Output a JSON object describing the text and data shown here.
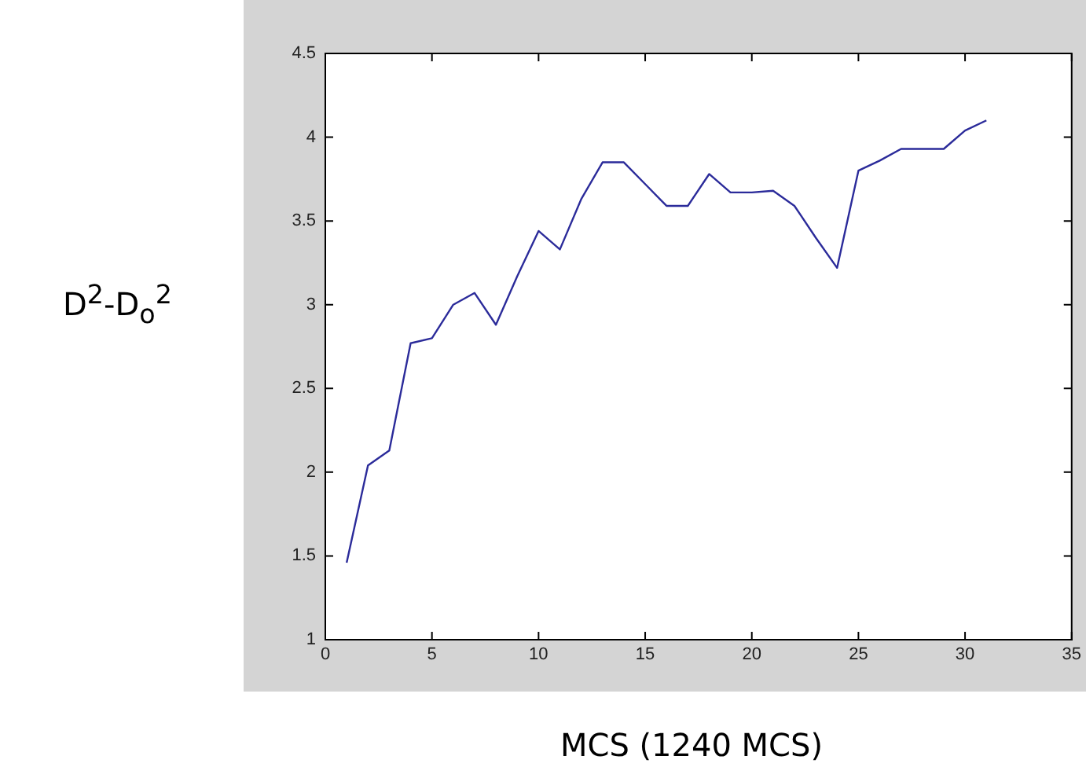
{
  "chart_data": {
    "type": "line",
    "xlabel": "MCS (1240 MCS)",
    "ylabel": "D$^{2}$-D$_{o}$$^{2}$",
    "x": [
      1,
      2,
      3,
      4,
      5,
      6,
      7,
      8,
      9,
      10,
      11,
      12,
      13,
      14,
      15,
      16,
      17,
      18,
      19,
      20,
      21,
      22,
      23,
      24,
      25,
      26,
      27,
      28,
      29,
      30,
      31
    ],
    "series": [
      {
        "color": "#2b2b9a",
        "values": [
          1.46,
          2.04,
          2.13,
          2.77,
          2.8,
          3.0,
          3.07,
          2.88,
          3.17,
          3.44,
          3.33,
          3.63,
          3.85,
          3.85,
          3.72,
          3.59,
          3.59,
          3.78,
          3.67,
          3.67,
          3.68,
          3.59,
          3.4,
          3.22,
          3.8,
          3.86,
          3.93,
          3.93,
          3.93,
          4.04,
          4.1
        ]
      }
    ],
    "xlim": [
      0,
      35
    ],
    "xticks": [
      0,
      5,
      10,
      15,
      20,
      25,
      30,
      35
    ],
    "ylim": [
      1,
      4.5
    ],
    "yticks": [
      1,
      1.5,
      2,
      2.5,
      3,
      3.5,
      4,
      4.5
    ],
    "grid": false,
    "legend": false,
    "marker": "none",
    "line_style": "solid"
  }
}
